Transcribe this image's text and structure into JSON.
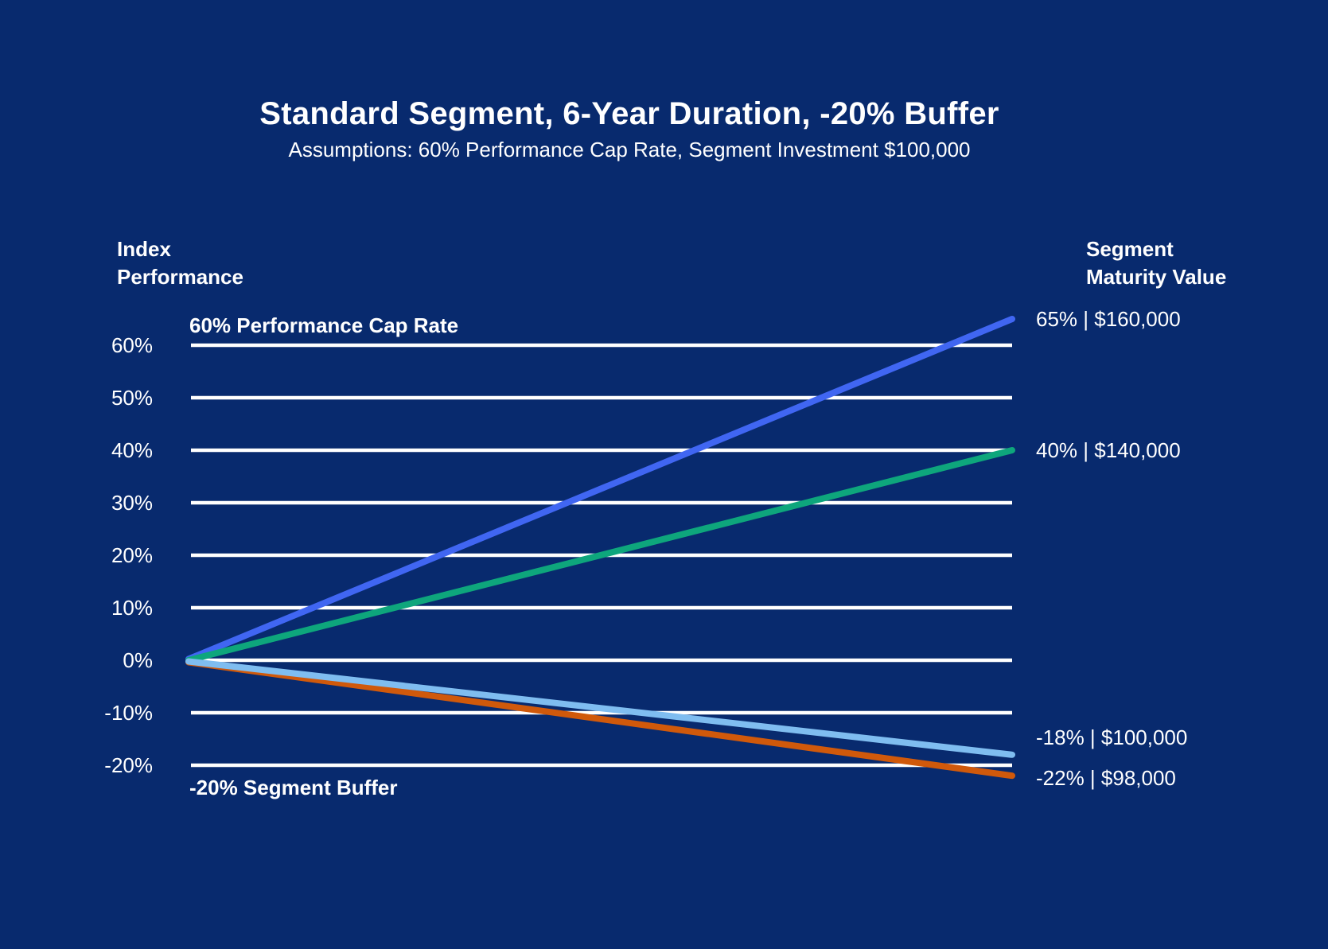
{
  "colors": {
    "background": "#082a6e",
    "text": "#ffffff",
    "gridline": "#ffffff"
  },
  "chart_data": {
    "type": "line",
    "title": "Standard Segment, 6-Year Duration, -20% Buffer",
    "subtitle": "Assumptions: 60% Performance Cap Rate, Segment Investment $100,000",
    "y_axis_label": [
      "Index",
      "Performance"
    ],
    "right_axis_label": [
      "Segment",
      "Maturity Value"
    ],
    "ylim": [
      -25,
      68
    ],
    "grid": true,
    "legend": "none",
    "y_ticks": [
      {
        "label": "60%",
        "value": 60
      },
      {
        "label": "50%",
        "value": 50
      },
      {
        "label": "40%",
        "value": 40
      },
      {
        "label": "30%",
        "value": 30
      },
      {
        "label": "20%",
        "value": 20
      },
      {
        "label": "10%",
        "value": 10
      },
      {
        "label": "0%",
        "value": 0
      },
      {
        "label": "-10%",
        "value": -10
      },
      {
        "label": "-20%",
        "value": -20
      }
    ],
    "annotations": [
      {
        "text": "60% Performance Cap Rate",
        "value": 60,
        "placement": "above"
      },
      {
        "text": "-20% Segment Buffer",
        "value": -20,
        "placement": "below"
      }
    ],
    "series": [
      {
        "name": "index-up-capped-scenario",
        "color": "#4066f2",
        "start_value": 0,
        "end_value": 65,
        "index_performance": "65%",
        "segment_maturity_value": "$160,000",
        "label": "65% | $160,000"
      },
      {
        "name": "index-up-under-cap-scenario",
        "color": "#0ea67c",
        "start_value": 0,
        "end_value": 40,
        "index_performance": "40%",
        "segment_maturity_value": "$140,000",
        "label": "40% | $140,000"
      },
      {
        "name": "index-down-within-buffer-scenario",
        "color": "#7fbdf0",
        "start_value": 0,
        "end_value": -18,
        "index_performance": "-18%",
        "segment_maturity_value": "$100,000",
        "label": "-18% | $100,000"
      },
      {
        "name": "index-down-beyond-buffer-scenario",
        "color": "#d0590b",
        "start_value": 0,
        "end_value": -22,
        "index_performance": "-22%",
        "segment_maturity_value": "$98,000",
        "label": "-22% | $98,000"
      }
    ]
  }
}
